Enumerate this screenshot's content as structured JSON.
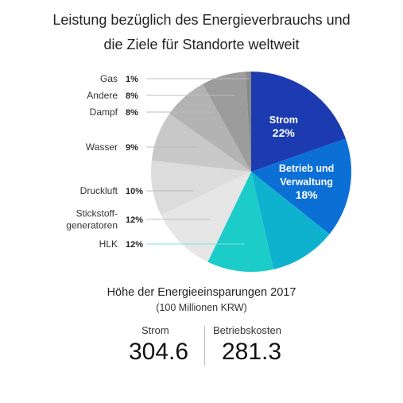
{
  "title_lines": [
    "Leistung bezüglich des Energieverbrauchs und",
    "die Ziele für Standorte weltweit"
  ],
  "chart_data": {
    "type": "pie",
    "slices": [
      {
        "label": "Strom",
        "value": 22,
        "color": "#1c3bb0",
        "label_inside": true
      },
      {
        "label": "Betrieb und Verwaltung",
        "label_lines": [
          "Betrieb und",
          "Verwaltung"
        ],
        "value": 18,
        "color": "#0b6fd6",
        "label_inside": true
      },
      {
        "label": "",
        "value": 12,
        "color": "#0eb2cf",
        "label_inside": false
      },
      {
        "label": "HLK",
        "value": 12,
        "color": "#1cccc9",
        "label_inside": false
      },
      {
        "label": "Stickstoff-generatoren",
        "label_lines": [
          "Stickstoff-",
          "generatoren"
        ],
        "value": 12,
        "color": "#e6e6e6",
        "label_inside": false
      },
      {
        "label": "Druckluft",
        "value": 10,
        "color": "#dcdcdc",
        "label_inside": false
      },
      {
        "label": "Wasser",
        "value": 9,
        "color": "#c8c8c8",
        "label_inside": false
      },
      {
        "label": "Dampf",
        "value": 8,
        "color": "#b3b3b3",
        "label_inside": false
      },
      {
        "label": "Andere",
        "value": 8,
        "color": "#9c9c9c",
        "label_inside": false
      },
      {
        "label": "Gas",
        "value": 1,
        "color": "#8a8a8a",
        "label_inside": false
      }
    ],
    "value_suffix": "%"
  },
  "savings": {
    "heading": "Höhe der Energieeinsparungen 2017",
    "unit": "(100 Millionen KRW)",
    "items": [
      {
        "label": "Strom",
        "value": "304.6"
      },
      {
        "label": "Betriebskosten",
        "value": "281.3"
      }
    ]
  }
}
